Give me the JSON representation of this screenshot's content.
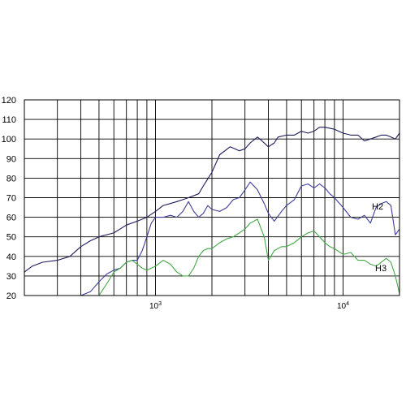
{
  "chart_data": {
    "type": "line",
    "title": "",
    "xlabel": "",
    "ylabel": "",
    "x_scale": "log",
    "xlim": [
      200,
      20000
    ],
    "ylim": [
      20,
      120
    ],
    "grid": true,
    "y_ticks": [
      20,
      30,
      40,
      50,
      60,
      70,
      80,
      90,
      100,
      110,
      120
    ],
    "x_tick_labels": [
      {
        "value": 1000,
        "base": "10",
        "exp": "3"
      },
      {
        "value": 10000,
        "base": "10",
        "exp": "4"
      }
    ],
    "series": [
      {
        "color": "#1c1c5a",
        "x": [
          200,
          220,
          250,
          300,
          350,
          400,
          450,
          500,
          600,
          700,
          800,
          900,
          1000,
          1100,
          1200,
          1300,
          1400,
          1500,
          1700,
          1800,
          2000,
          2200,
          2500,
          2800,
          3000,
          3200,
          3500,
          3700,
          4000,
          4300,
          4500,
          5000,
          5500,
          6000,
          6500,
          7000,
          7500,
          8000,
          9000,
          10000,
          11000,
          12000,
          13000,
          14000,
          15000,
          16000,
          17000,
          18000,
          19000,
          20000
        ],
        "y": [
          32,
          35,
          37,
          38,
          40,
          45,
          48,
          50,
          52,
          56,
          58,
          60,
          63,
          66,
          67,
          68,
          69,
          70,
          72,
          76,
          83,
          92,
          96,
          94,
          95,
          98,
          101,
          99,
          96,
          98,
          101,
          102,
          102,
          104,
          103,
          104,
          106,
          106,
          105,
          103,
          102,
          102,
          99,
          100,
          101,
          102,
          102,
          101,
          100,
          103
        ]
      },
      {
        "name": "H2",
        "color": "#3d3d99",
        "x": [
          400,
          450,
          500,
          550,
          600,
          650,
          700,
          750,
          800,
          850,
          900,
          950,
          1000,
          1100,
          1200,
          1300,
          1400,
          1500,
          1600,
          1700,
          1800,
          1900,
          2000,
          2200,
          2400,
          2600,
          2800,
          3000,
          3200,
          3500,
          3800,
          4000,
          4300,
          4700,
          5000,
          5500,
          6000,
          6500,
          7000,
          7500,
          8000,
          8500,
          9000,
          10000,
          11000,
          12000,
          13000,
          14000,
          15000,
          16000,
          17000,
          18000,
          19000,
          20000
        ],
        "y": [
          20,
          22,
          27,
          31,
          33,
          34,
          37,
          38,
          38,
          43,
          50,
          57,
          60,
          60,
          61,
          60,
          63,
          68,
          63,
          60,
          62,
          66,
          64,
          63,
          65,
          69,
          70,
          74,
          78,
          74,
          67,
          62,
          58,
          63,
          66,
          69,
          76,
          77,
          75,
          77,
          75,
          72,
          70,
          65,
          60,
          59,
          61,
          57,
          65,
          67,
          68,
          66,
          51,
          54
        ]
      },
      {
        "name": "H3",
        "color": "#44a844",
        "x": [
          500,
          550,
          600,
          650,
          700,
          750,
          800,
          850,
          900,
          1000,
          1100,
          1200,
          1300,
          1400,
          1500,
          1600,
          1700,
          1800,
          1900,
          2000,
          2200,
          2400,
          2600,
          2800,
          3000,
          3200,
          3500,
          3800,
          4000,
          4300,
          4700,
          5000,
          5500,
          6000,
          6500,
          7000,
          7500,
          8000,
          8500,
          9000,
          10000,
          11000,
          12000,
          13000,
          14000,
          15000,
          16000,
          17000,
          18000,
          19000,
          20000
        ],
        "y": [
          20,
          26,
          32,
          34,
          37,
          38,
          36,
          34,
          33,
          35,
          38,
          36,
          32,
          30,
          30,
          34,
          40,
          43,
          44,
          44,
          47,
          49,
          50,
          52,
          54,
          57,
          59,
          50,
          38,
          43,
          45,
          45,
          47,
          50,
          52,
          53,
          50,
          47,
          45,
          44,
          41,
          42,
          38,
          38,
          36,
          35,
          37,
          39,
          37,
          30,
          21
        ]
      }
    ]
  }
}
